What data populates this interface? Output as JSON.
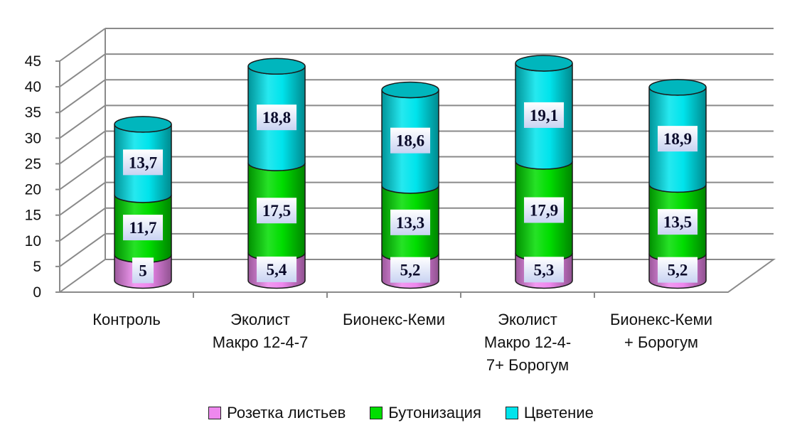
{
  "chart_data": {
    "type": "bar",
    "stacked": true,
    "style": "3d-cylinder",
    "categories": [
      "Контроль",
      "Эколист Макро 12-4-7",
      "Бионекс-Кеми",
      "Эколист Макро 12-4-7+ Борогум",
      "Бионекс-Кеми + Борогум"
    ],
    "category_label_lines": [
      [
        "Контроль"
      ],
      [
        "Эколист",
        "Макро 12-4-7"
      ],
      [
        "Бионекс-Кеми"
      ],
      [
        "Эколист",
        "Макро 12-4-",
        "7+ Борогум"
      ],
      [
        "Бионекс-Кеми",
        "+ Борогум"
      ]
    ],
    "series": [
      {
        "name": "Розетка листьев",
        "values": [
          5,
          5.4,
          5.2,
          5.3,
          5.2
        ],
        "labels": [
          "5",
          "5,4",
          "5,2",
          "5,3",
          "5,2"
        ],
        "color": "#ee88ee"
      },
      {
        "name": "Бутонизация",
        "values": [
          11.7,
          17.5,
          13.3,
          17.9,
          13.5
        ],
        "labels": [
          "11,7",
          "17,5",
          "13,3",
          "17,9",
          "13,5"
        ],
        "color": "#00dd00"
      },
      {
        "name": "Цветение",
        "values": [
          13.7,
          18.8,
          18.6,
          19.1,
          18.9
        ],
        "labels": [
          "13,7",
          "18,8",
          "18,6",
          "19,1",
          "18,9"
        ],
        "color": "#00e4ec"
      }
    ],
    "ylim": [
      0,
      45
    ],
    "yticks": [
      "0",
      "5",
      "10",
      "15",
      "20",
      "25",
      "30",
      "35",
      "40",
      "45"
    ],
    "grid": true,
    "legend_position": "bottom"
  }
}
